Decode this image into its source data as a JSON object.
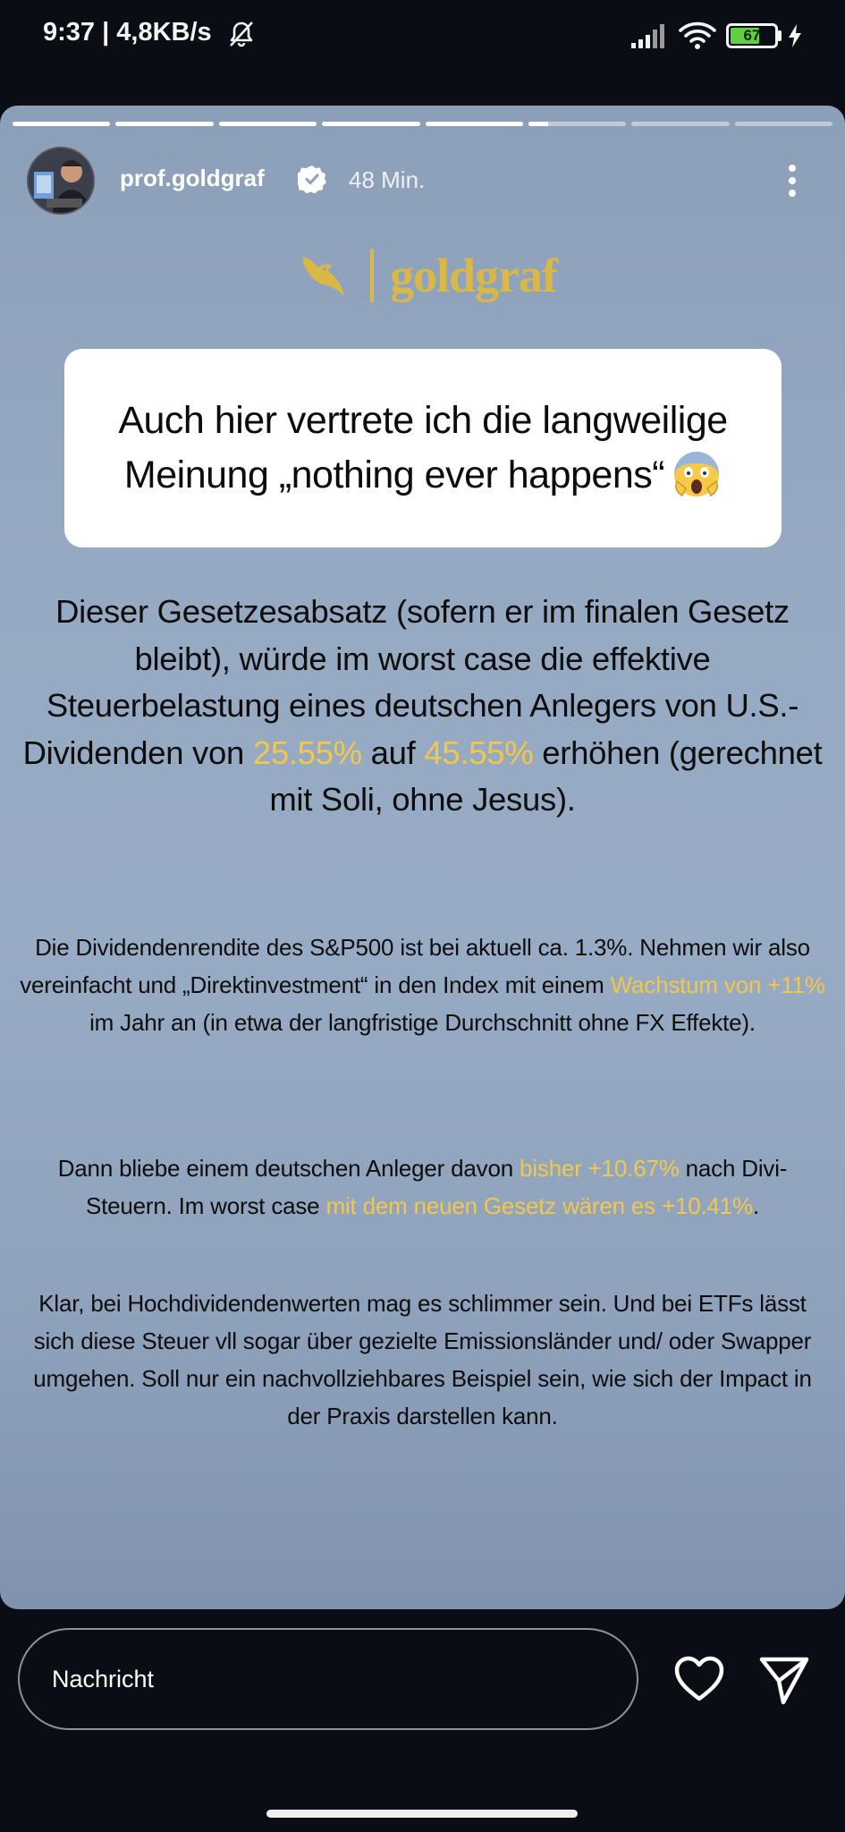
{
  "status_bar": {
    "time_speed": "9:37 | 4,8KB/s",
    "battery": "67",
    "icons": [
      "bell-off-icon",
      "signal-icon",
      "wifi-icon",
      "battery-icon",
      "charging-icon"
    ]
  },
  "story": {
    "progress": [
      1,
      1,
      1,
      1,
      1,
      0.2,
      0,
      0
    ],
    "username": "prof.goldgraf",
    "time_ago": "48 Min.",
    "brand": "goldgraf",
    "quote": "Auch hier vertrete ich die langweilige Meinung „nothing ever happens“",
    "main": {
      "before": "Dieser Gesetzesabsatz (sofern er im finalen Gesetz bleibt), würde im worst case die effektive Steuerbelastung eines deutschen Anlegers von U.S.-Dividenden von ",
      "hl1": "25.55%",
      "mid": " auf ",
      "hl2": "45.55%",
      "after": " erhöhen (gerechnet mit Soli, ohne Jesus)."
    },
    "p1": {
      "before": "Die Dividendenrendite des S&P500 ist bei aktuell ca. 1.3%. Nehmen wir also vereinfacht und „Direktinvestment“ in den Index mit einem ",
      "hl": "Wachstum von +11%",
      "after": " im Jahr an (in etwa der langfristige Durchschnitt ohne FX Effekte)."
    },
    "p2": {
      "before": "Dann bliebe einem deutschen Anleger davon ",
      "hl1": "bisher +10.67%",
      "mid": " nach Divi-Steuern. Im worst case ",
      "hl2": "mit dem neuen Gesetz wären es +10.41%",
      "after": "."
    },
    "p3": "Klar, bei Hochdividendenwerten mag es schlimmer sein. Und bei ETFs lässt sich diese Steuer vll sogar über gezielte Emissionsländer und/ oder Swapper umgehen. Soll nur ein nachvollziehbares Beispiel sein, wie sich der Impact in der Praxis darstellen kann.",
    "colors": {
      "highlight": "#f3c84a",
      "brand": "#d9b848"
    }
  },
  "bottom_bar": {
    "message_placeholder": "Nachricht"
  }
}
